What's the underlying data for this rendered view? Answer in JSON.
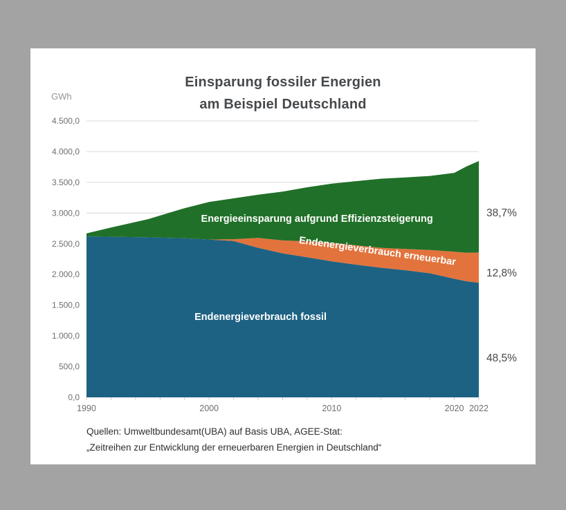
{
  "page": {
    "background_color": "#a3a3a3",
    "card_color": "#ffffff"
  },
  "title": {
    "line1": "Einsparung fossiler Energien",
    "line2": "am Beispiel Deutschland"
  },
  "y_axis_unit": "GWh",
  "chart_data": {
    "type": "area",
    "stacked": true,
    "title": "Einsparung fossiler Energien am Beispiel Deutschland",
    "ylabel": "GWh",
    "xlabel": "",
    "xlim": [
      1990,
      2022
    ],
    "ylim": [
      0,
      4500
    ],
    "grid": true,
    "x": [
      1990,
      1992,
      1995,
      1998,
      2000,
      2002,
      2004,
      2006,
      2008,
      2010,
      2012,
      2014,
      2016,
      2018,
      2020,
      2021,
      2022
    ],
    "series": [
      {
        "key": "fossil",
        "name": "Endenergieverbrauch fossil",
        "color": "#1d6283",
        "share_2022": "48,5%",
        "values": [
          2620,
          2615,
          2605,
          2590,
          2570,
          2545,
          2435,
          2345,
          2280,
          2215,
          2160,
          2110,
          2070,
          2020,
          1930,
          1890,
          1866
        ]
      },
      {
        "key": "erneuerbar",
        "name": "Endenergieverbrauch erneuerbar",
        "color": "#e2733c",
        "share_2022": "12,8%",
        "values": [
          0,
          0,
          0,
          0,
          0,
          30,
          160,
          210,
          260,
          300,
          315,
          325,
          345,
          380,
          440,
          465,
          492
        ]
      },
      {
        "key": "effizienz",
        "name": "Energieeinsparung aufgrund Effizienzsteigerung",
        "color": "#217029",
        "share_2022": "38,7%",
        "values": [
          50,
          150,
          295,
          490,
          610,
          665,
          705,
          795,
          880,
          965,
          1045,
          1125,
          1165,
          1205,
          1285,
          1405,
          1489
        ]
      }
    ],
    "y_ticks": [
      {
        "value": 0,
        "label": "0,0"
      },
      {
        "value": 500,
        "label": "500,0"
      },
      {
        "value": 1000,
        "label": "1.000,0"
      },
      {
        "value": 1500,
        "label": "1.500,0"
      },
      {
        "value": 2000,
        "label": "2.000,0"
      },
      {
        "value": 2500,
        "label": "2.500,0"
      },
      {
        "value": 3000,
        "label": "3.000,0"
      },
      {
        "value": 3500,
        "label": "3.500,0"
      },
      {
        "value": 4000,
        "label": "4.000,0"
      },
      {
        "value": 4500,
        "label": "4.500,0"
      }
    ],
    "x_ticks": [
      1990,
      2000,
      2010,
      2020,
      2022
    ],
    "x_minor_tick_step": 2,
    "area_labels": [
      {
        "text": "Energieeinsparung aufgrund Effizienzsteigerung",
        "year": 2008.8,
        "value": 2860,
        "rotate": 0,
        "color": "#ffffff"
      },
      {
        "text": "Endenergieverbrauch erneuerbar",
        "year": 2013.7,
        "value": 2331,
        "rotate": 8,
        "color": "#ffffff"
      },
      {
        "text": "Endenergieverbrauch fossil",
        "year": 2004.2,
        "value": 1261,
        "rotate": 0,
        "color": "#ffffff"
      }
    ],
    "percent_labels": [
      {
        "text": "38,7%",
        "value": 3006
      },
      {
        "text": "12,8%",
        "value": 2027
      },
      {
        "text": "48,5%",
        "value": 642
      }
    ],
    "colors": {
      "gridline": "#e2e2e2",
      "tick_text": "#6e6e6e",
      "minor_tick": "#cccccc",
      "percent_text": "#474747"
    }
  },
  "source": {
    "line1": "Quellen: Umweltbundesamt(UBA) auf Basis UBA, AGEE-Stat:",
    "line2": "„Zeitreihen zur Entwicklung der erneuerbaren Energien in Deutschland“"
  }
}
